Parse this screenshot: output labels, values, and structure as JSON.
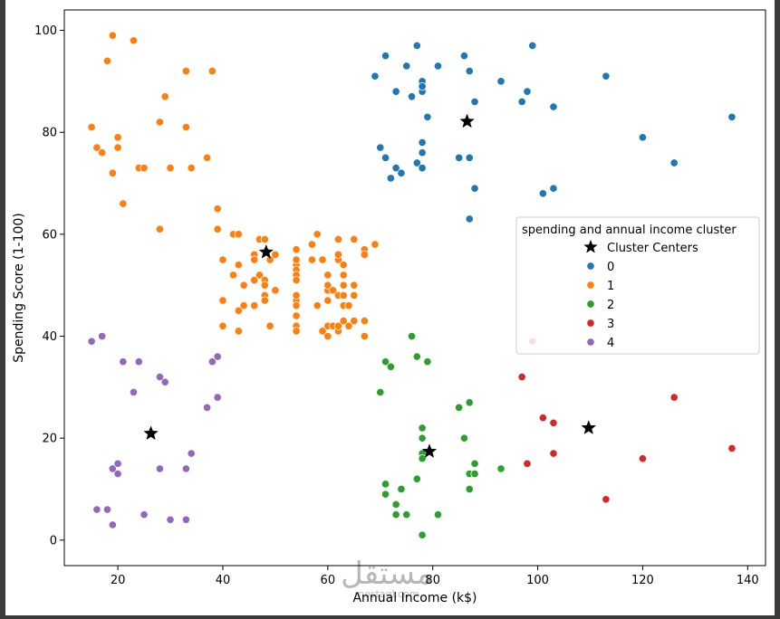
{
  "chart_data": {
    "type": "scatter",
    "xlabel": "Annual Income (k$)",
    "ylabel": "Spending Score (1-100)",
    "xlim": [
      9.8,
      143.4
    ],
    "ylim": [
      -5,
      104
    ],
    "xticks": [
      20,
      40,
      60,
      80,
      100,
      120,
      140
    ],
    "yticks": [
      0,
      20,
      40,
      60,
      80,
      100
    ],
    "grid": false,
    "legend": {
      "title": "spending and annual income cluster",
      "placement": "center-right"
    },
    "series": [
      {
        "name": "0",
        "color": "#1f77b4",
        "marker": "circle",
        "points": [
          [
            69,
            91
          ],
          [
            70,
            77
          ],
          [
            71,
            95
          ],
          [
            71,
            75
          ],
          [
            71,
            75
          ],
          [
            72,
            71
          ],
          [
            73,
            88
          ],
          [
            73,
            73
          ],
          [
            74,
            72
          ],
          [
            75,
            93
          ],
          [
            76,
            87
          ],
          [
            77,
            97
          ],
          [
            77,
            74
          ],
          [
            78,
            90
          ],
          [
            78,
            88
          ],
          [
            78,
            76
          ],
          [
            78,
            89
          ],
          [
            78,
            78
          ],
          [
            78,
            73
          ],
          [
            79,
            83
          ],
          [
            81,
            93
          ],
          [
            85,
            75
          ],
          [
            86,
            95
          ],
          [
            87,
            63
          ],
          [
            87,
            75
          ],
          [
            87,
            92
          ],
          [
            88,
            86
          ],
          [
            88,
            69
          ],
          [
            93,
            90
          ],
          [
            97,
            86
          ],
          [
            98,
            88
          ],
          [
            99,
            97
          ],
          [
            101,
            68
          ],
          [
            103,
            85
          ],
          [
            103,
            69
          ],
          [
            113,
            91
          ],
          [
            120,
            79
          ],
          [
            126,
            74
          ],
          [
            137,
            83
          ]
        ]
      },
      {
        "name": "1",
        "color": "#ff7f0e",
        "marker": "circle",
        "points": [
          [
            15,
            81
          ],
          [
            16,
            77
          ],
          [
            17,
            76
          ],
          [
            18,
            94
          ],
          [
            19,
            72
          ],
          [
            19,
            99
          ],
          [
            20,
            77
          ],
          [
            20,
            79
          ],
          [
            21,
            66
          ],
          [
            23,
            98
          ],
          [
            24,
            73
          ],
          [
            25,
            73
          ],
          [
            28,
            82
          ],
          [
            28,
            61
          ],
          [
            29,
            87
          ],
          [
            30,
            73
          ],
          [
            33,
            92
          ],
          [
            33,
            81
          ],
          [
            34,
            73
          ],
          [
            37,
            75
          ],
          [
            38,
            92
          ],
          [
            39,
            61
          ],
          [
            39,
            65
          ],
          [
            40,
            55
          ],
          [
            40,
            47
          ],
          [
            40,
            42
          ],
          [
            42,
            52
          ],
          [
            42,
            60
          ],
          [
            43,
            60
          ],
          [
            43,
            54
          ],
          [
            43,
            45
          ],
          [
            43,
            41
          ],
          [
            44,
            50
          ],
          [
            44,
            46
          ],
          [
            46,
            51
          ],
          [
            46,
            46
          ],
          [
            46,
            56
          ],
          [
            46,
            55
          ],
          [
            47,
            52
          ],
          [
            47,
            59
          ],
          [
            48,
            51
          ],
          [
            48,
            59
          ],
          [
            48,
            50
          ],
          [
            48,
            48
          ],
          [
            48,
            59
          ],
          [
            48,
            47
          ],
          [
            49,
            55
          ],
          [
            49,
            42
          ],
          [
            50,
            49
          ],
          [
            50,
            56
          ],
          [
            54,
            47
          ],
          [
            54,
            54
          ],
          [
            54,
            53
          ],
          [
            54,
            48
          ],
          [
            54,
            52
          ],
          [
            54,
            42
          ],
          [
            54,
            51
          ],
          [
            54,
            55
          ],
          [
            54,
            41
          ],
          [
            54,
            44
          ],
          [
            54,
            57
          ],
          [
            54,
            46
          ],
          [
            57,
            58
          ],
          [
            57,
            55
          ],
          [
            58,
            60
          ],
          [
            58,
            46
          ],
          [
            59,
            55
          ],
          [
            59,
            41
          ],
          [
            60,
            49
          ],
          [
            60,
            40
          ],
          [
            60,
            42
          ],
          [
            60,
            52
          ],
          [
            60,
            47
          ],
          [
            60,
            50
          ],
          [
            61,
            42
          ],
          [
            61,
            49
          ],
          [
            62,
            41
          ],
          [
            62,
            48
          ],
          [
            62,
            59
          ],
          [
            62,
            55
          ],
          [
            62,
            56
          ],
          [
            62,
            42
          ],
          [
            63,
            50
          ],
          [
            63,
            46
          ],
          [
            63,
            43
          ],
          [
            63,
            48
          ],
          [
            63,
            52
          ],
          [
            63,
            54
          ],
          [
            64,
            42
          ],
          [
            64,
            46
          ],
          [
            65,
            48
          ],
          [
            65,
            50
          ],
          [
            65,
            43
          ],
          [
            65,
            59
          ],
          [
            67,
            43
          ],
          [
            67,
            57
          ],
          [
            67,
            56
          ],
          [
            67,
            40
          ],
          [
            69,
            58
          ]
        ]
      },
      {
        "name": "2",
        "color": "#2ca02c",
        "marker": "circle",
        "points": [
          [
            70,
            29
          ],
          [
            71,
            35
          ],
          [
            71,
            11
          ],
          [
            71,
            9
          ],
          [
            72,
            34
          ],
          [
            73,
            5
          ],
          [
            73,
            7
          ],
          [
            74,
            10
          ],
          [
            75,
            5
          ],
          [
            76,
            40
          ],
          [
            77,
            12
          ],
          [
            77,
            36
          ],
          [
            78,
            22
          ],
          [
            78,
            17
          ],
          [
            78,
            20
          ],
          [
            78,
            16
          ],
          [
            78,
            1
          ],
          [
            78,
            1
          ],
          [
            79,
            35
          ],
          [
            81,
            5
          ],
          [
            85,
            26
          ],
          [
            86,
            20
          ],
          [
            87,
            27
          ],
          [
            87,
            13
          ],
          [
            87,
            10
          ],
          [
            88,
            13
          ],
          [
            88,
            15
          ],
          [
            93,
            14
          ]
        ]
      },
      {
        "name": "3",
        "color": "#d62728",
        "marker": "circle",
        "points": [
          [
            97,
            32
          ],
          [
            98,
            15
          ],
          [
            99,
            39
          ],
          [
            101,
            24
          ],
          [
            103,
            17
          ],
          [
            103,
            23
          ],
          [
            113,
            8
          ],
          [
            120,
            16
          ],
          [
            126,
            28
          ],
          [
            137,
            18
          ]
        ]
      },
      {
        "name": "4",
        "color": "#9467bd",
        "marker": "circle",
        "points": [
          [
            15,
            39
          ],
          [
            16,
            6
          ],
          [
            17,
            40
          ],
          [
            18,
            6
          ],
          [
            19,
            3
          ],
          [
            19,
            14
          ],
          [
            20,
            15
          ],
          [
            20,
            13
          ],
          [
            21,
            35
          ],
          [
            23,
            29
          ],
          [
            24,
            35
          ],
          [
            25,
            5
          ],
          [
            28,
            14
          ],
          [
            28,
            32
          ],
          [
            29,
            31
          ],
          [
            30,
            4
          ],
          [
            33,
            4
          ],
          [
            33,
            14
          ],
          [
            34,
            17
          ],
          [
            37,
            26
          ],
          [
            38,
            35
          ],
          [
            39,
            36
          ],
          [
            39,
            28
          ]
        ]
      },
      {
        "name": "Cluster Centers",
        "color": "#000000",
        "marker": "star",
        "points": [
          [
            86.54,
            82.13
          ],
          [
            48.26,
            56.48
          ],
          [
            79.36,
            17.39
          ],
          [
            109.7,
            22.0
          ],
          [
            26.3,
            20.91
          ]
        ]
      }
    ]
  },
  "watermark": {
    "glyph_text": "مستقل",
    "latin_text": "mostaql.com"
  }
}
